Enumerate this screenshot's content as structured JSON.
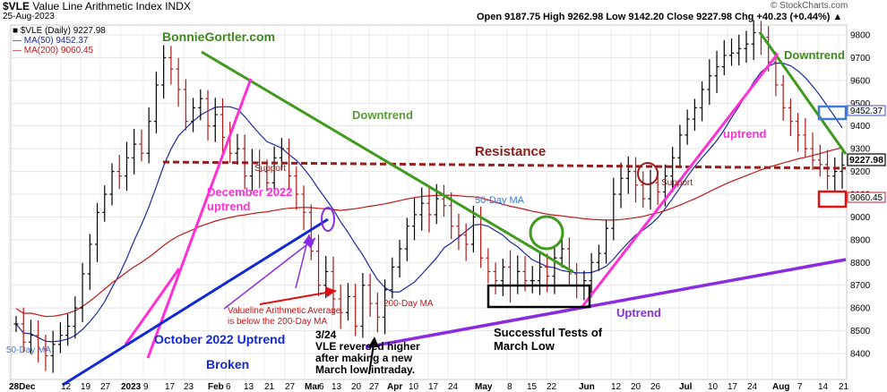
{
  "header": {
    "symbol": "$VLE",
    "name": "Value Line Arithmetic Index  INDX",
    "date": "25-Aug-2023",
    "credit": "© StockCharts.com",
    "ohlc": "Open 9187.75  High 9262.98  Low 9142.20  Close 9227.98  Chg +40.23 (+0.44%) ▲"
  },
  "legend": {
    "series_label": "■ $VLE (Daily) 9227.98",
    "ma50_label": "— MA(50) 9452.37",
    "ma200_label": "— MA(200) 9060.45"
  },
  "annotations": {
    "bonnie": "BonnieGortler.com",
    "downtrend1": "Downtrend",
    "downtrend2": "Downtrend",
    "resistance": "Resistance",
    "support1": "Support",
    "support2": "Support",
    "uptrend_jul": "uptrend",
    "dec_uptrend": "December 2022\nuptrend",
    "ma50_mid": "50-Day MA",
    "ma50_left": "50-Day MA",
    "ma200_label": "200-Day MA",
    "below_ma200": "Valueline Arithmetic Average\nis below the 200-Day MA",
    "oct_uptrend": "October 2022 Uptrend",
    "broken": "Broken",
    "reversal": "3/24\nVLE reversed higher\nafter making a new\nMarch low intraday.",
    "tests": "Successful Tests of\nMarch Low",
    "uptrend_may": "Uptrend",
    "tag_ma50": "9452.37",
    "tag_close": "9227.98",
    "tag_ma200": "9060.45"
  },
  "chart_data": {
    "type": "ohlc",
    "ylim": [
      8300,
      9850
    ],
    "yticks": [
      8400,
      8500,
      8600,
      8700,
      8800,
      8900,
      9000,
      9100,
      9200,
      9300,
      9400,
      9500,
      9600,
      9700,
      9800
    ],
    "xtick_labels": [
      "28Dec",
      "12",
      "19",
      "27",
      "2023",
      "9",
      "17",
      "23",
      "Feb",
      "6",
      "13",
      "21",
      "27",
      "Mar",
      "6",
      "13",
      "20",
      "27",
      "Apr",
      "10",
      "17",
      "24",
      "May",
      "8",
      "15",
      "22",
      "Jun",
      "12",
      "20",
      "26",
      "Jul",
      "10",
      "17",
      "24",
      "Aug",
      "7",
      "14",
      "21"
    ],
    "closes": [
      8530,
      8450,
      8480,
      8420,
      8390,
      8440,
      8480,
      8520,
      8600,
      8750,
      8880,
      9020,
      9100,
      9200,
      9180,
      9260,
      9320,
      9280,
      9420,
      9580,
      9700,
      9650,
      9560,
      9420,
      9480,
      9520,
      9400,
      9450,
      9350,
      9280,
      9300,
      9180,
      9240,
      9200,
      9150,
      9260,
      9300,
      9180,
      9100,
      9020,
      8850,
      8700,
      8760,
      8640,
      8580,
      8650,
      8520,
      8700,
      8620,
      8560,
      8680,
      8780,
      8860,
      8960,
      9010,
      9060,
      9010,
      9080,
      9050,
      8960,
      8920,
      8880,
      9000,
      8820,
      8760,
      8720,
      8780,
      8700,
      8760,
      8720,
      8720,
      8780,
      8740,
      8820,
      8860,
      8750,
      8700,
      8720,
      8800,
      8840,
      8950,
      9100,
      9170,
      9200,
      9140,
      9080,
      9150,
      9110,
      9180,
      9260,
      9360,
      9430,
      9480,
      9560,
      9620,
      9660,
      9710,
      9720,
      9740,
      9760,
      9810,
      9790,
      9680,
      9580,
      9480,
      9420,
      9360,
      9300,
      9250,
      9230,
      9180,
      9200,
      9228
    ]
  }
}
